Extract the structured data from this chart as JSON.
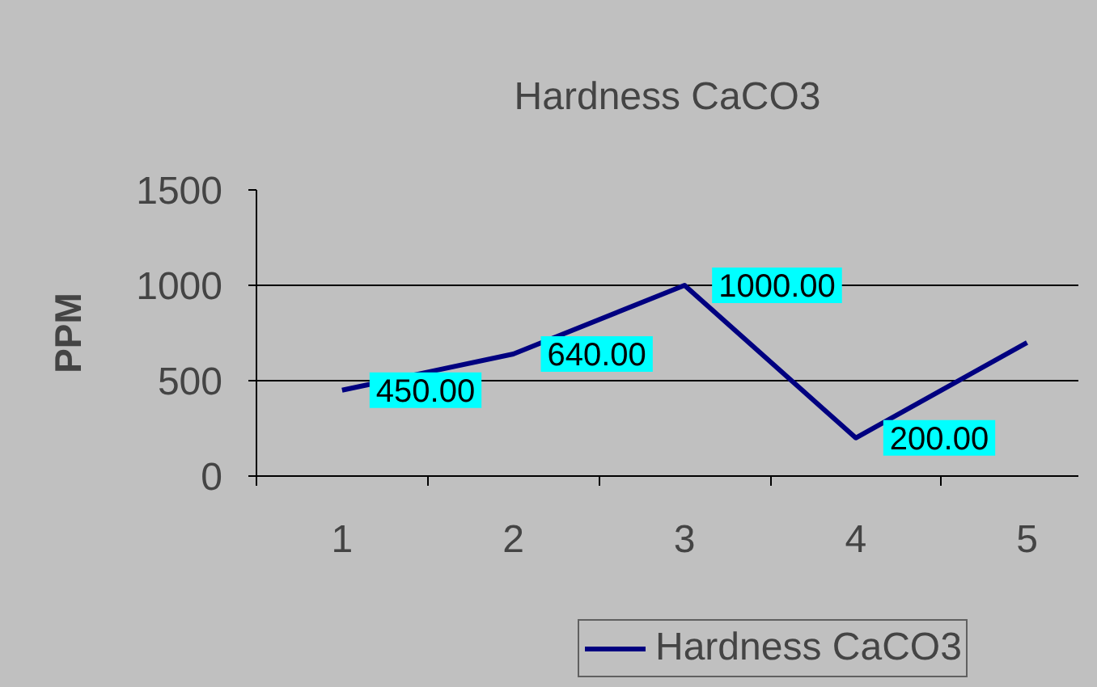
{
  "chart_data": {
    "type": "line",
    "title": "Hardness CaCO3",
    "ylabel": "PPM",
    "categories": [
      "1",
      "2",
      "3",
      "4",
      "5"
    ],
    "series": [
      {
        "name": "Hardness CaCO3",
        "color": "#000080",
        "values": [
          450,
          640,
          1000,
          200,
          700
        ],
        "value_labels": [
          "450.00",
          "640.00",
          "1000.00",
          "200.00",
          null
        ]
      }
    ],
    "ylim": [
      0,
      1500
    ],
    "yticks": [
      0,
      500,
      1000,
      1500
    ],
    "grid": "y",
    "legend": "bottom",
    "marker": "none",
    "line_style": "solid"
  }
}
